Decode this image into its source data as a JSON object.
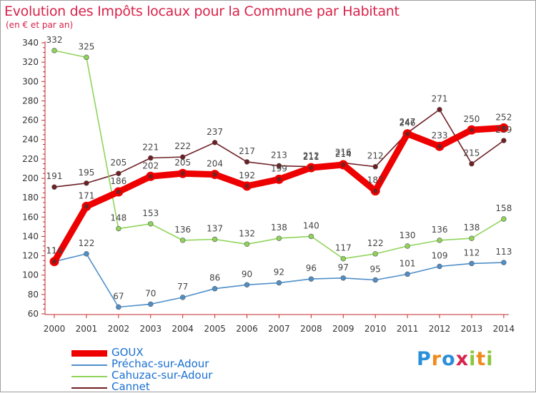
{
  "header": {
    "title": "Evolution des Impôts locaux pour la Commune par Habitant",
    "subtitle": "(en € et par an)"
  },
  "chart_data": {
    "type": "line",
    "title": "Evolution des Impôts locaux pour la Commune par Habitant",
    "subtitle": "(en € et par an)",
    "xlabel": "",
    "ylabel": "",
    "x": [
      "2000",
      "2001",
      "2002",
      "2003",
      "2004",
      "2005",
      "2006",
      "2007",
      "2008",
      "2009",
      "2010",
      "2011",
      "2012",
      "2013",
      "2014"
    ],
    "ylim": [
      60,
      340
    ],
    "yticks": [
      60,
      80,
      100,
      120,
      140,
      160,
      180,
      200,
      220,
      240,
      260,
      280,
      300,
      320,
      340
    ],
    "grid": false,
    "legend_position": "bottom-left",
    "series": [
      {
        "name": "GOUX",
        "color": "#ee0000",
        "values": [
          114,
          171,
          186,
          202,
          205,
          204,
          192,
          199,
          211,
          214,
          187,
          246,
          233,
          250,
          252
        ]
      },
      {
        "name": "Préchac-sur-Adour",
        "color": "#4f8fc9",
        "values": [
          114,
          122,
          67,
          70,
          77,
          86,
          90,
          92,
          96,
          97,
          95,
          101,
          109,
          112,
          113
        ]
      },
      {
        "name": "Cahuzac-sur-Adour",
        "color": "#8fd45a",
        "values": [
          332,
          325,
          148,
          153,
          136,
          137,
          132,
          138,
          140,
          117,
          122,
          130,
          136,
          138,
          158
        ]
      },
      {
        "name": "Cannet",
        "color": "#6e1f24",
        "values": [
          191,
          195,
          205,
          221,
          222,
          237,
          217,
          213,
          212,
          216,
          212,
          247,
          271,
          215,
          239
        ]
      }
    ]
  },
  "legend": {
    "items": [
      {
        "label": "GOUX"
      },
      {
        "label": "Préchac-sur-Adour"
      },
      {
        "label": "Cahuzac-sur-Adour"
      },
      {
        "label": "Cannet"
      }
    ]
  },
  "logo": {
    "letters": [
      "P",
      "r",
      "o",
      "x",
      "i",
      "t",
      "i"
    ],
    "colors": [
      "#2a8fd8",
      "#f08a1c",
      "#2a8fd8",
      "#d9224a",
      "#8cc63e",
      "#f08a1c",
      "#8cc63e"
    ]
  }
}
